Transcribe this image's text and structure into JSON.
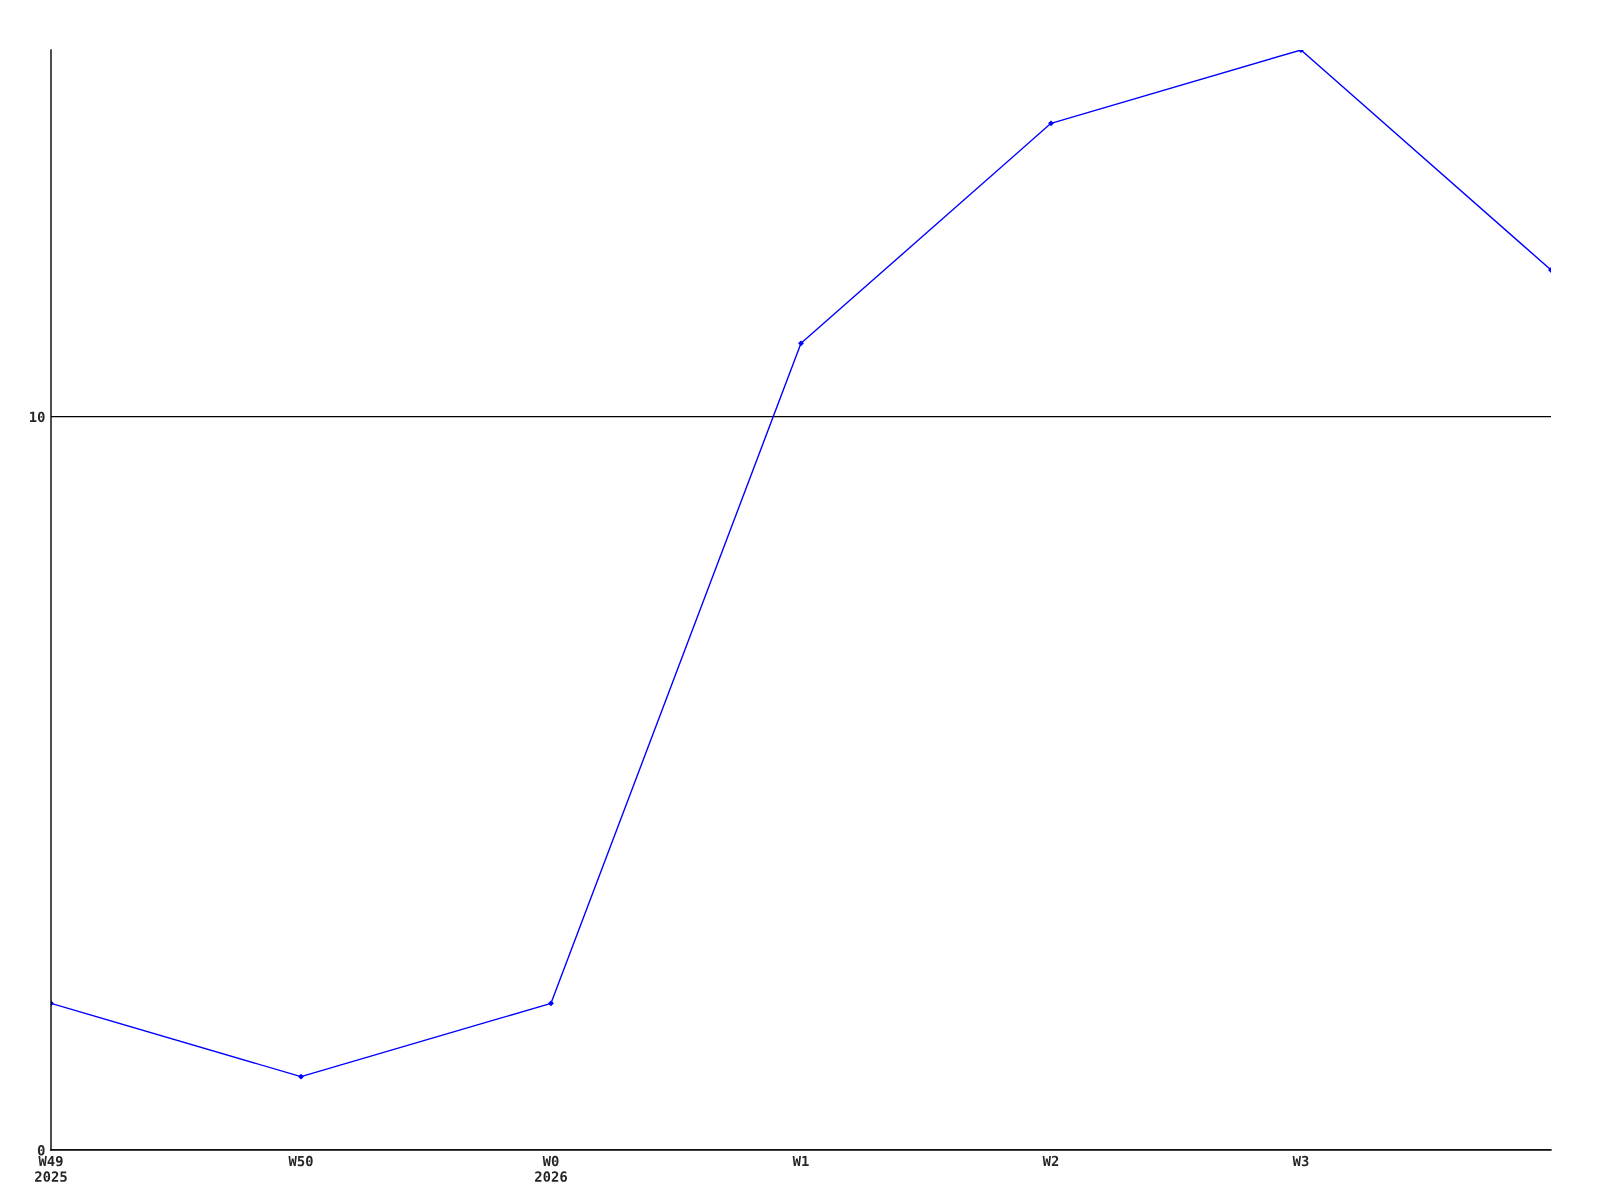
{
  "chart_data": {
    "type": "line",
    "categories": [
      "W49\n2025",
      "W50",
      "W0\n2026",
      "W1",
      "W2",
      "W3",
      null
    ],
    "series": [
      {
        "color": "#0000ff",
        "values": [
          2,
          1,
          2,
          11,
          14,
          15,
          12
        ]
      }
    ],
    "ylim": [
      0,
      15
    ],
    "yticks": [
      0,
      10
    ],
    "grid": "y",
    "marker": "diamond",
    "line_style": "solid"
  }
}
